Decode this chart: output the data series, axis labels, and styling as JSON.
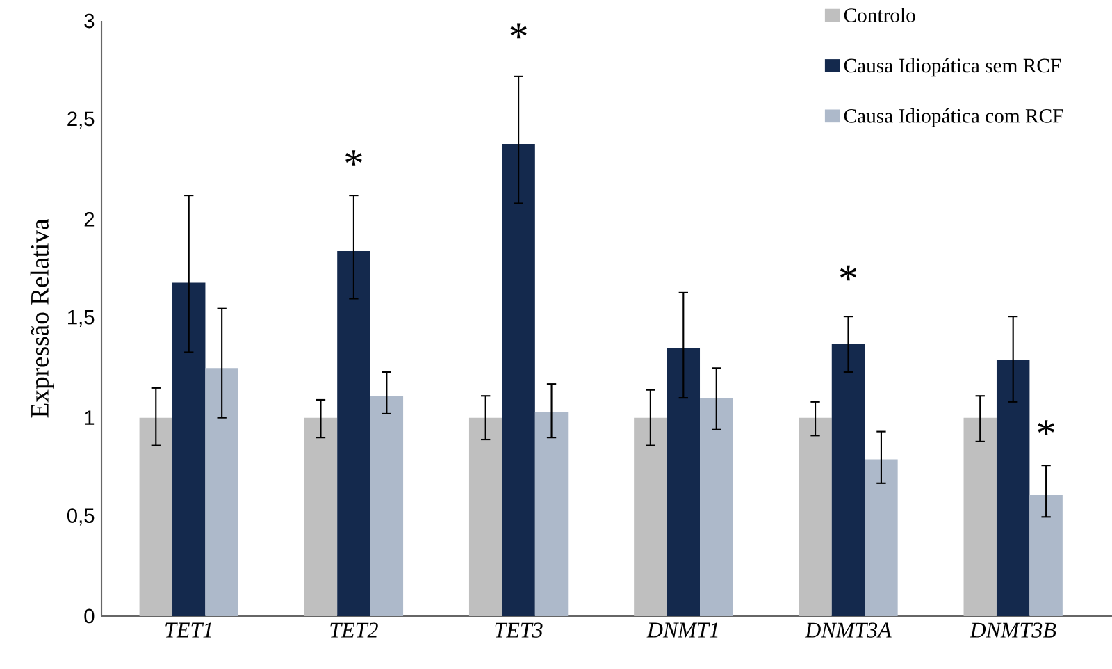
{
  "chart_data": {
    "type": "bar",
    "ylabel": "Expressão Relativa",
    "categories": [
      "TET1",
      "TET2",
      "TET3",
      "DNMT1",
      "DNMT3A",
      "DNMT3B"
    ],
    "series": [
      {
        "name": "Controlo",
        "color": "#bfbfbf",
        "values": [
          1.0,
          1.0,
          1.0,
          1.0,
          1.0,
          1.0
        ],
        "errors": [
          [
            0.86,
            1.15
          ],
          [
            0.9,
            1.09
          ],
          [
            0.89,
            1.11
          ],
          [
            0.86,
            1.14
          ],
          [
            0.91,
            1.08
          ],
          [
            0.88,
            1.11
          ]
        ]
      },
      {
        "name": "Causa Idiopática sem RCF",
        "color": "#14294d",
        "values": [
          1.68,
          1.84,
          2.38,
          1.35,
          1.37,
          1.29
        ],
        "errors": [
          [
            1.33,
            2.12
          ],
          [
            1.6,
            2.12
          ],
          [
            2.08,
            2.72
          ],
          [
            1.1,
            1.63
          ],
          [
            1.23,
            1.51
          ],
          [
            1.08,
            1.51
          ]
        ]
      },
      {
        "name": "Causa Idiopática com RCF",
        "color": "#adb9ca",
        "values": [
          1.25,
          1.11,
          1.03,
          1.1,
          0.79,
          0.61
        ],
        "errors": [
          [
            1.0,
            1.55
          ],
          [
            1.02,
            1.23
          ],
          [
            0.9,
            1.17
          ],
          [
            0.94,
            1.25
          ],
          [
            0.67,
            0.93
          ],
          [
            0.5,
            0.76
          ]
        ]
      }
    ],
    "ylim": [
      0,
      3
    ],
    "yticks": [
      0,
      {
        "value": 0.5,
        "label": "0,5"
      },
      1,
      {
        "value": 1.5,
        "label": "1,5"
      },
      2,
      {
        "value": 2.5,
        "label": "2,5"
      },
      3
    ],
    "grid": false,
    "legend": "top right",
    "annotations": [
      "*",
      "*",
      "*",
      "*"
    ]
  }
}
